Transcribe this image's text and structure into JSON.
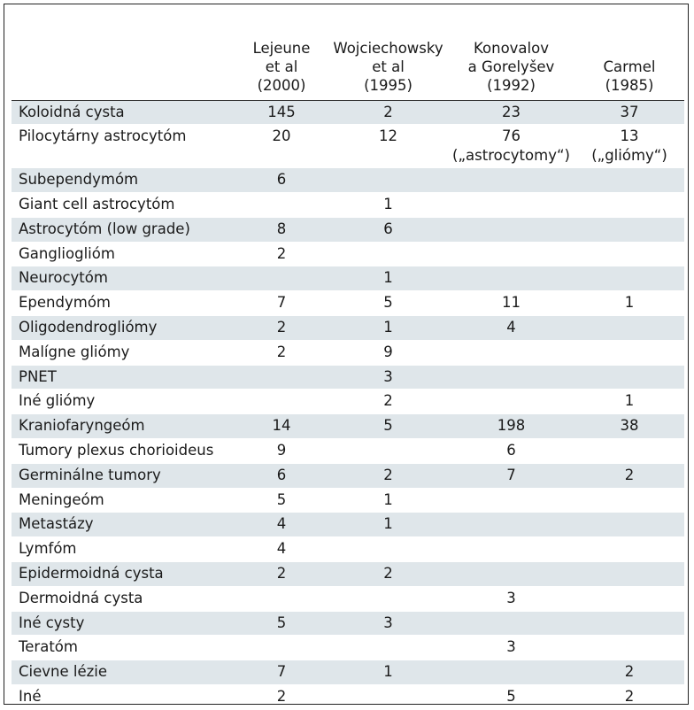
{
  "headers": [
    "",
    [
      "Lejeune",
      "et al",
      "(2000)"
    ],
    [
      "Wojciechowsky",
      "et al",
      "(1995)"
    ],
    [
      "Konovalov",
      "a Gorelyšev",
      "(1992)"
    ],
    [
      "Carmel",
      "(1985)"
    ]
  ],
  "rows": [
    {
      "name": "Koloidná cysta",
      "values": [
        "145",
        "2",
        "23",
        "37"
      ]
    },
    {
      "name": "Pilocytárny astrocytóm",
      "values": [
        "20",
        "12",
        "76\n(„astrocytomy“)",
        "13\n(„gliómy“)"
      ]
    },
    {
      "name": "Subependymóm",
      "values": [
        "6",
        "",
        "",
        ""
      ]
    },
    {
      "name": "Giant cell astrocytóm",
      "values": [
        "",
        "1",
        "",
        ""
      ]
    },
    {
      "name": "Astrocytóm (low grade)",
      "values": [
        "8",
        "6",
        "",
        ""
      ]
    },
    {
      "name": "Gangliogliόm",
      "values": [
        "2",
        "",
        "",
        ""
      ]
    },
    {
      "name": "Neurocytóm",
      "values": [
        "",
        "1",
        "",
        ""
      ]
    },
    {
      "name": "Ependymóm",
      "values": [
        "7",
        "5",
        "11",
        "1"
      ]
    },
    {
      "name": "Oligodendrogliómy",
      "values": [
        "2",
        "1",
        "4",
        ""
      ]
    },
    {
      "name": "Malígne gliómy",
      "values": [
        "2",
        "9",
        "",
        ""
      ]
    },
    {
      "name": "PNET",
      "values": [
        "",
        "3",
        "",
        ""
      ]
    },
    {
      "name": "Iné gliómy",
      "values": [
        "",
        "2",
        "",
        "1"
      ]
    },
    {
      "name": "Kraniofaryngeóm",
      "values": [
        "14",
        "5",
        "198",
        "38"
      ]
    },
    {
      "name": "Tumory plexus chorioideus",
      "values": [
        "9",
        "",
        "6",
        ""
      ]
    },
    {
      "name": "Germinálne tumory",
      "values": [
        "6",
        "2",
        "7",
        "2"
      ]
    },
    {
      "name": "Meningeóm",
      "values": [
        "5",
        "1",
        "",
        ""
      ]
    },
    {
      "name": "Metastázy",
      "values": [
        "4",
        "1",
        "",
        ""
      ]
    },
    {
      "name": "Lymfóm",
      "values": [
        "4",
        "",
        "",
        ""
      ]
    },
    {
      "name": "Epidermoidná cysta",
      "values": [
        "2",
        "2",
        "",
        ""
      ]
    },
    {
      "name": "Dermoidná cysta",
      "values": [
        "",
        "",
        "3",
        ""
      ]
    },
    {
      "name": "Iné cysty",
      "values": [
        "5",
        "3",
        "",
        ""
      ]
    },
    {
      "name": "Teratóm",
      "values": [
        "",
        "",
        "3",
        ""
      ]
    },
    {
      "name": "Cievne lézie",
      "values": [
        "7",
        "1",
        "",
        "2"
      ]
    },
    {
      "name": "Iné",
      "values": [
        "2",
        "",
        "5",
        "2"
      ]
    }
  ],
  "shade_color": "#dfe6ea"
}
